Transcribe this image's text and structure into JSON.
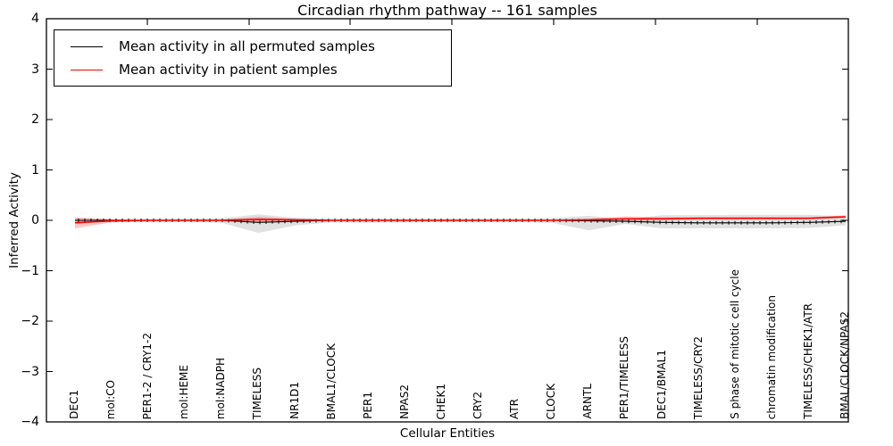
{
  "title": "Circadian rhythm pathway -- 161 samples",
  "axes": {
    "xlabel": "Cellular Entities",
    "ylabel": "Inferred Activity",
    "ytick_labels": [
      "4",
      "3",
      "2",
      "1",
      "0",
      "−1",
      "−2",
      "−3",
      "−4"
    ],
    "ylim": [
      -4,
      4
    ]
  },
  "legend": {
    "items": [
      {
        "label": "Mean activity in all permuted samples",
        "color": "#000000"
      },
      {
        "label": "Mean activity in patient samples",
        "color": "#ff0000"
      }
    ]
  },
  "chart_data": {
    "type": "line",
    "title": "Circadian rhythm pathway -- 161 samples",
    "xlabel": "Cellular Entities",
    "ylabel": "Inferred Activity",
    "ylim": [
      -4,
      4
    ],
    "grid": false,
    "legend_position": "upper left",
    "marker": "|",
    "categories": [
      "DEC1",
      "mol:CO",
      "PER1-2 / CRY1-2",
      "mol:HEME",
      "mol:NADPH",
      "TIMELESS",
      "NR1D1",
      "BMAL1/CLOCK",
      "PER1",
      "NPAS2",
      "CHEK1",
      "CRY2",
      "ATR",
      "CLOCK",
      "ARNTL",
      "PER1/TIMELESS",
      "DEC1/BMAL1",
      "TIMELESS/CRY2",
      "S phase of mitotic cell cycle",
      "chromatin modification",
      "TIMELESS/CHEK1/ATR",
      "BMAL/CLOCK/NPAS2"
    ],
    "series": [
      {
        "name": "Mean activity in all permuted samples",
        "color": "#000000",
        "band_color": "#c8c8c8",
        "values": [
          0.0,
          0.0,
          0.0,
          0.0,
          0.0,
          -0.04,
          -0.02,
          0.0,
          0.0,
          0.0,
          0.0,
          0.0,
          0.0,
          0.0,
          -0.01,
          -0.02,
          -0.04,
          -0.05,
          -0.05,
          -0.05,
          -0.04,
          -0.02
        ],
        "band_upper": [
          0.04,
          0.03,
          0.03,
          0.03,
          0.04,
          0.12,
          0.05,
          0.03,
          0.04,
          0.03,
          0.03,
          0.03,
          0.03,
          0.04,
          0.09,
          0.02,
          0.1,
          0.1,
          0.11,
          0.11,
          0.11,
          0.08
        ],
        "band_lower": [
          -0.06,
          -0.03,
          -0.03,
          -0.03,
          -0.05,
          -0.25,
          -0.1,
          -0.04,
          -0.05,
          -0.04,
          -0.03,
          -0.03,
          -0.03,
          -0.05,
          -0.2,
          -0.07,
          -0.16,
          -0.16,
          -0.16,
          -0.16,
          -0.15,
          -0.1
        ]
      },
      {
        "name": "Mean activity in patient samples",
        "color": "#ff0000",
        "band_color": "#ff6666",
        "values": [
          -0.05,
          -0.01,
          0.0,
          0.0,
          0.0,
          0.02,
          0.01,
          0.0,
          0.0,
          0.0,
          0.0,
          0.0,
          0.0,
          0.0,
          0.01,
          0.03,
          0.03,
          0.04,
          0.04,
          0.04,
          0.04,
          0.07
        ],
        "band_halfwidth": [
          0.11,
          0.03,
          0.01,
          0.01,
          0.01,
          0.05,
          0.02,
          0.01,
          0.01,
          0.01,
          0.01,
          0.01,
          0.01,
          0.01,
          0.02,
          0.05,
          0.03,
          0.02,
          0.02,
          0.02,
          0.02,
          0.03
        ]
      }
    ]
  }
}
